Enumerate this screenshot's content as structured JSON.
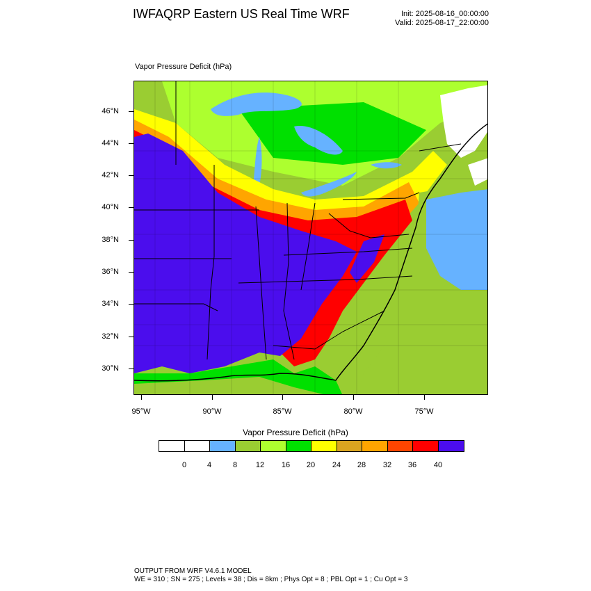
{
  "header": {
    "title": "IWFAQRP Eastern US Real Time WRF",
    "init": "Init: 2025-08-16_00:00:00",
    "valid": "Valid: 2025-08-17_22:00:00"
  },
  "map": {
    "field_title": "Vapor Pressure Deficit   (hPa)",
    "lat_labels": [
      "46°N",
      "44°N",
      "42°N",
      "40°N",
      "38°N",
      "36°N",
      "34°N",
      "32°N",
      "30°N"
    ],
    "lon_labels": [
      "95°W",
      "90°W",
      "85°W",
      "80°W",
      "75°W"
    ],
    "colors": {
      "land_background": "#9ACD32",
      "water": "#66B2FF",
      "great_lakes": "#3399FF",
      "boundaries": "#000000"
    }
  },
  "colorbar": {
    "title": "Vapor Pressure Deficit  (hPa)",
    "tick_labels": [
      "0",
      "4",
      "8",
      "12",
      "16",
      "20",
      "24",
      "28",
      "32",
      "36",
      "40"
    ],
    "colors": [
      "#FFFFFF",
      "#FFFFFF",
      "#66B2FF",
      "#9ACD32",
      "#ADFF2F",
      "#00E000",
      "#FFFF00",
      "#DAA520",
      "#FFA500",
      "#FF4500",
      "#FF0000",
      "#4B0DED"
    ]
  },
  "footer": {
    "line1": "OUTPUT FROM WRF V4.6.1 MODEL",
    "line2": "WE = 310 ; SN = 275 ; Levels = 38 ; Dis = 8km ; Phys Opt = 8 ; PBL Opt = 1 ; Cu Opt = 3"
  }
}
